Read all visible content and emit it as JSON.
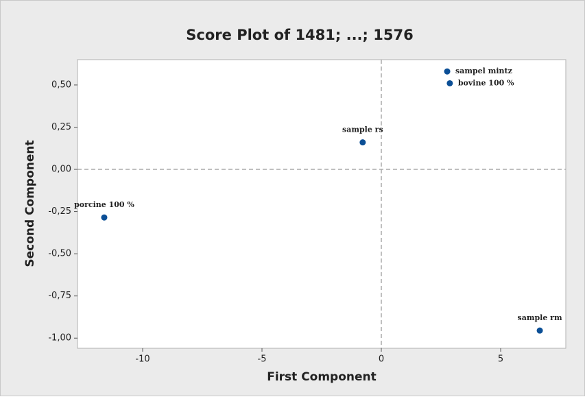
{
  "chart_data": {
    "type": "scatter",
    "title": "Score Plot of 1481; ...; 1576",
    "x_label": "First Component",
    "y_label": "Second Component",
    "x": [
      2.76,
      2.87,
      -0.78,
      -11.61,
      6.64
    ],
    "values": [
      0.58,
      0.51,
      0.16,
      -0.285,
      -0.955
    ],
    "point_labels": [
      "sampel mintz",
      "bovine 100 %",
      "sample rs",
      "porcine 100 %",
      "sample rm"
    ],
    "color": "#0b4f96",
    "xlim": [
      -12.73,
      7.73
    ],
    "ylim": [
      -1.06,
      0.65
    ],
    "xticks": [
      -10,
      -5,
      0,
      5
    ],
    "yticks": [
      {
        "value": 0.5,
        "label": "0,50"
      },
      {
        "value": 0.25,
        "label": "0,25"
      },
      {
        "value": 0,
        "label": "0,00"
      },
      {
        "value": -0.25,
        "label": "-0,25"
      },
      {
        "value": -0.5,
        "label": "-0,50"
      },
      {
        "value": -0.75,
        "label": "-0,75"
      },
      {
        "value": -1,
        "label": "-1,00"
      }
    ],
    "reference_lines": {
      "x": [
        0
      ],
      "y": [
        0
      ]
    }
  }
}
